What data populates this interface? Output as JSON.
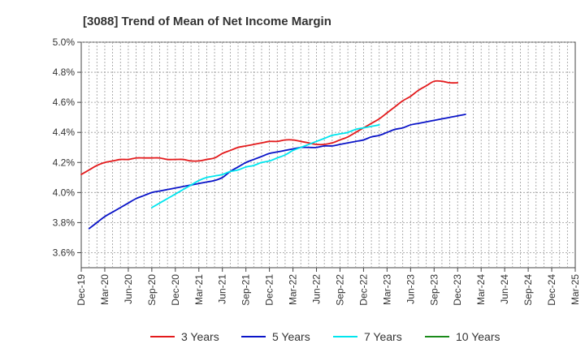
{
  "chart_data": {
    "type": "line",
    "title": "[3088]  Trend of Mean of Net Income Margin",
    "xlabel": "",
    "ylabel": "",
    "ylim": [
      3.5,
      5.0
    ],
    "ytick_values": [
      3.6,
      3.8,
      4.0,
      4.2,
      4.4,
      4.6,
      4.8,
      5.0
    ],
    "yticks": [
      "3.6%",
      "3.8%",
      "4.0%",
      "4.2%",
      "4.4%",
      "4.6%",
      "4.8%",
      "5.0%"
    ],
    "xticks": [
      "Dec-19",
      "Mar-20",
      "Jun-20",
      "Sep-20",
      "Dec-20",
      "Mar-21",
      "Jun-21",
      "Sep-21",
      "Dec-21",
      "Mar-22",
      "Jun-22",
      "Sep-22",
      "Dec-22",
      "Mar-23",
      "Jun-23",
      "Sep-23",
      "Dec-23",
      "Mar-24",
      "Jun-24",
      "Sep-24",
      "Dec-24",
      "Mar-25"
    ],
    "grid": true,
    "legend_position": "bottom",
    "series": [
      {
        "name": "3 Years",
        "color": "#e31a1c",
        "start": 0,
        "values": [
          4.12,
          4.15,
          4.18,
          4.2,
          4.21,
          4.22,
          4.22,
          4.23,
          4.23,
          4.23,
          4.23,
          4.22,
          4.22,
          4.22,
          4.21,
          4.21,
          4.22,
          4.23,
          4.26,
          4.28,
          4.3,
          4.31,
          4.32,
          4.33,
          4.34,
          4.34,
          4.35,
          4.35,
          4.34,
          4.33,
          4.32,
          4.32,
          4.33,
          4.35,
          4.37,
          4.4,
          4.43,
          4.46,
          4.49,
          4.53,
          4.57,
          4.61,
          4.64,
          4.68,
          4.71,
          4.74,
          4.74,
          4.73,
          4.73
        ]
      },
      {
        "name": "5 Years",
        "color": "#0a14c8",
        "start": 1,
        "values": [
          3.76,
          3.8,
          3.84,
          3.87,
          3.9,
          3.93,
          3.96,
          3.98,
          4.0,
          4.01,
          4.02,
          4.03,
          4.04,
          4.05,
          4.06,
          4.07,
          4.08,
          4.1,
          4.14,
          4.17,
          4.2,
          4.22,
          4.24,
          4.26,
          4.27,
          4.28,
          4.29,
          4.3,
          4.3,
          4.3,
          4.31,
          4.31,
          4.32,
          4.33,
          4.34,
          4.35,
          4.37,
          4.38,
          4.4,
          4.42,
          4.43,
          4.45,
          4.46,
          4.47,
          4.48,
          4.49,
          4.5,
          4.51,
          4.52
        ]
      },
      {
        "name": "7 Years",
        "color": "#00e5ee",
        "start": 9,
        "values": [
          3.9,
          3.93,
          3.96,
          3.99,
          4.02,
          4.05,
          4.08,
          4.1,
          4.11,
          4.12,
          4.14,
          4.15,
          4.17,
          4.18,
          4.2,
          4.21,
          4.23,
          4.25,
          4.28,
          4.3,
          4.32,
          4.34,
          4.36,
          4.38,
          4.39,
          4.4,
          4.42,
          4.43,
          4.44,
          4.45
        ]
      },
      {
        "name": "10 Years",
        "color": "#1a8a1a",
        "start": 0,
        "values": []
      }
    ]
  }
}
